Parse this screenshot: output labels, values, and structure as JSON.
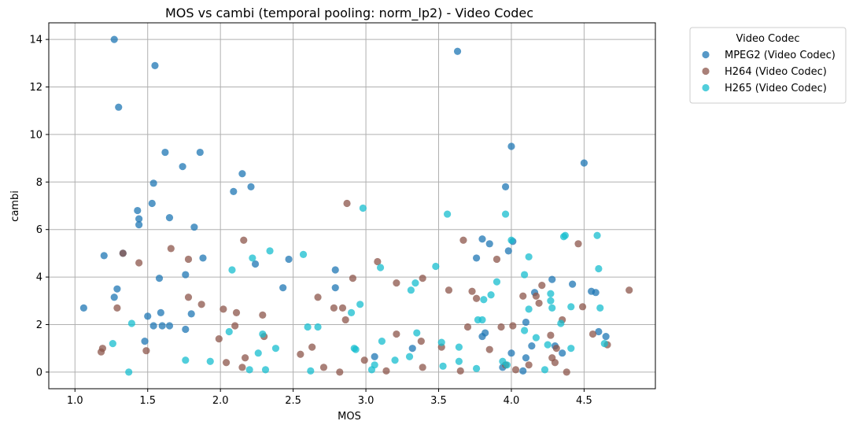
{
  "chart_data": {
    "type": "scatter",
    "title": "MOS vs cambi (temporal pooling: norm_lp2) - Video Codec",
    "xlabel": "MOS",
    "ylabel": "cambi",
    "xlim": [
      0.82,
      4.99
    ],
    "ylim": [
      -0.7,
      14.7
    ],
    "xticks": [
      1.0,
      1.5,
      2.0,
      2.5,
      3.0,
      3.5,
      4.0,
      4.5
    ],
    "xtick_labels": [
      "1.0",
      "1.5",
      "2.0",
      "2.5",
      "3.0",
      "3.5",
      "4.0",
      "4.5"
    ],
    "yticks": [
      0,
      2,
      4,
      6,
      8,
      10,
      12,
      14
    ],
    "ytick_labels": [
      "0",
      "2",
      "4",
      "6",
      "8",
      "10",
      "12",
      "14"
    ],
    "grid": true,
    "legend": {
      "title": "Video Codec",
      "placement": "outside-right-top"
    },
    "series": [
      {
        "name": "MPEG2 (Video Codec)",
        "color": "#1f77b4",
        "points": [
          [
            1.06,
            2.7
          ],
          [
            1.27,
            14.0
          ],
          [
            1.3,
            11.15
          ],
          [
            1.2,
            4.9
          ],
          [
            1.27,
            3.15
          ],
          [
            1.29,
            3.5
          ],
          [
            1.33,
            5.0
          ],
          [
            1.43,
            6.8
          ],
          [
            1.44,
            6.45
          ],
          [
            1.44,
            6.2
          ],
          [
            1.48,
            1.3
          ],
          [
            1.5,
            2.35
          ],
          [
            1.53,
            7.1
          ],
          [
            1.54,
            7.95
          ],
          [
            1.55,
            12.9
          ],
          [
            1.54,
            1.95
          ],
          [
            1.58,
            3.95
          ],
          [
            1.59,
            2.5
          ],
          [
            1.6,
            1.95
          ],
          [
            1.62,
            9.25
          ],
          [
            1.65,
            6.5
          ],
          [
            1.65,
            1.95
          ],
          [
            1.74,
            8.65
          ],
          [
            1.76,
            4.1
          ],
          [
            1.76,
            1.8
          ],
          [
            1.8,
            2.45
          ],
          [
            1.82,
            6.1
          ],
          [
            1.86,
            9.25
          ],
          [
            1.88,
            4.8
          ],
          [
            2.09,
            7.6
          ],
          [
            2.15,
            8.35
          ],
          [
            2.21,
            7.8
          ],
          [
            2.24,
            4.55
          ],
          [
            2.43,
            3.55
          ],
          [
            2.47,
            4.75
          ],
          [
            2.79,
            4.3
          ],
          [
            2.79,
            3.55
          ],
          [
            3.06,
            0.65
          ],
          [
            3.32,
            1.0
          ],
          [
            3.63,
            13.5
          ],
          [
            3.76,
            4.8
          ],
          [
            3.8,
            5.6
          ],
          [
            3.8,
            1.5
          ],
          [
            3.82,
            1.65
          ],
          [
            3.85,
            5.4
          ],
          [
            3.94,
            0.2
          ],
          [
            3.96,
            7.8
          ],
          [
            3.98,
            5.1
          ],
          [
            4.0,
            9.5
          ],
          [
            4.0,
            0.8
          ],
          [
            4.01,
            5.5
          ],
          [
            4.08,
            0.05
          ],
          [
            4.1,
            0.6
          ],
          [
            4.1,
            2.1
          ],
          [
            4.14,
            1.1
          ],
          [
            4.16,
            3.35
          ],
          [
            4.28,
            3.9
          ],
          [
            4.3,
            1.1
          ],
          [
            4.35,
            0.8
          ],
          [
            4.42,
            3.7
          ],
          [
            4.5,
            8.8
          ],
          [
            4.55,
            3.4
          ],
          [
            4.58,
            3.35
          ],
          [
            4.6,
            1.7
          ],
          [
            4.65,
            1.5
          ]
        ]
      },
      {
        "name": "H264 (Video Codec)",
        "color": "#8c564b",
        "points": [
          [
            1.18,
            0.85
          ],
          [
            1.19,
            1.0
          ],
          [
            1.29,
            2.7
          ],
          [
            1.33,
            5.0
          ],
          [
            1.44,
            4.6
          ],
          [
            1.49,
            0.9
          ],
          [
            1.66,
            5.2
          ],
          [
            1.78,
            4.75
          ],
          [
            1.78,
            3.15
          ],
          [
            1.87,
            2.85
          ],
          [
            1.99,
            1.4
          ],
          [
            2.02,
            2.65
          ],
          [
            2.04,
            0.4
          ],
          [
            2.1,
            1.95
          ],
          [
            2.11,
            2.5
          ],
          [
            2.15,
            0.2
          ],
          [
            2.16,
            5.55
          ],
          [
            2.17,
            0.6
          ],
          [
            2.29,
            2.4
          ],
          [
            2.3,
            1.5
          ],
          [
            2.55,
            0.75
          ],
          [
            2.63,
            1.05
          ],
          [
            2.67,
            3.15
          ],
          [
            2.71,
            0.2
          ],
          [
            2.78,
            2.7
          ],
          [
            2.82,
            0.0
          ],
          [
            2.84,
            2.7
          ],
          [
            2.86,
            2.2
          ],
          [
            2.87,
            7.1
          ],
          [
            2.91,
            3.95
          ],
          [
            2.99,
            0.5
          ],
          [
            3.08,
            4.65
          ],
          [
            3.14,
            0.05
          ],
          [
            3.21,
            3.75
          ],
          [
            3.21,
            1.6
          ],
          [
            3.38,
            1.3
          ],
          [
            3.39,
            3.95
          ],
          [
            3.39,
            0.2
          ],
          [
            3.52,
            1.05
          ],
          [
            3.57,
            3.45
          ],
          [
            3.65,
            0.05
          ],
          [
            3.67,
            5.55
          ],
          [
            3.7,
            1.9
          ],
          [
            3.73,
            3.4
          ],
          [
            3.76,
            3.1
          ],
          [
            3.85,
            0.95
          ],
          [
            3.9,
            4.75
          ],
          [
            3.93,
            1.9
          ],
          [
            3.96,
            0.3
          ],
          [
            4.01,
            1.95
          ],
          [
            4.03,
            0.1
          ],
          [
            4.08,
            3.2
          ],
          [
            4.12,
            0.3
          ],
          [
            4.17,
            3.2
          ],
          [
            4.19,
            2.9
          ],
          [
            4.21,
            3.65
          ],
          [
            4.27,
            1.55
          ],
          [
            4.28,
            0.6
          ],
          [
            4.3,
            0.4
          ],
          [
            4.31,
            1.0
          ],
          [
            4.35,
            2.2
          ],
          [
            4.38,
            0.0
          ],
          [
            4.46,
            5.4
          ],
          [
            4.49,
            2.75
          ],
          [
            4.56,
            1.6
          ],
          [
            4.66,
            1.15
          ],
          [
            4.81,
            3.45
          ]
        ]
      },
      {
        "name": "H265 (Video Codec)",
        "color": "#17becf",
        "points": [
          [
            1.26,
            1.2
          ],
          [
            1.37,
            0.0
          ],
          [
            1.39,
            2.05
          ],
          [
            1.76,
            0.5
          ],
          [
            1.93,
            0.45
          ],
          [
            2.06,
            1.7
          ],
          [
            2.08,
            4.3
          ],
          [
            2.2,
            0.1
          ],
          [
            2.22,
            4.8
          ],
          [
            2.26,
            0.8
          ],
          [
            2.29,
            1.6
          ],
          [
            2.31,
            0.1
          ],
          [
            2.34,
            5.1
          ],
          [
            2.38,
            1.0
          ],
          [
            2.57,
            4.95
          ],
          [
            2.6,
            1.9
          ],
          [
            2.62,
            0.05
          ],
          [
            2.67,
            1.9
          ],
          [
            2.9,
            2.5
          ],
          [
            2.92,
            1.0
          ],
          [
            2.93,
            0.95
          ],
          [
            2.96,
            2.85
          ],
          [
            2.98,
            6.9
          ],
          [
            3.04,
            0.1
          ],
          [
            3.06,
            0.3
          ],
          [
            3.1,
            4.4
          ],
          [
            3.11,
            1.3
          ],
          [
            3.2,
            0.5
          ],
          [
            3.3,
            0.65
          ],
          [
            3.31,
            3.45
          ],
          [
            3.34,
            3.75
          ],
          [
            3.35,
            1.65
          ],
          [
            3.48,
            4.45
          ],
          [
            3.52,
            1.25
          ],
          [
            3.53,
            0.25
          ],
          [
            3.56,
            6.65
          ],
          [
            3.64,
            1.05
          ],
          [
            3.64,
            0.45
          ],
          [
            3.76,
            0.15
          ],
          [
            3.77,
            2.2
          ],
          [
            3.8,
            2.2
          ],
          [
            3.81,
            3.05
          ],
          [
            3.86,
            3.25
          ],
          [
            3.9,
            3.8
          ],
          [
            3.94,
            0.45
          ],
          [
            3.96,
            6.65
          ],
          [
            3.97,
            0.3
          ],
          [
            4.0,
            5.55
          ],
          [
            4.09,
            1.75
          ],
          [
            4.09,
            4.1
          ],
          [
            4.12,
            4.85
          ],
          [
            4.12,
            2.65
          ],
          [
            4.17,
            1.45
          ],
          [
            4.23,
            0.1
          ],
          [
            4.25,
            1.15
          ],
          [
            4.27,
            3.3
          ],
          [
            4.27,
            3.0
          ],
          [
            4.28,
            2.7
          ],
          [
            4.34,
            2.05
          ],
          [
            4.36,
            5.7
          ],
          [
            4.37,
            5.75
          ],
          [
            4.41,
            2.75
          ],
          [
            4.41,
            1.0
          ],
          [
            4.59,
            5.75
          ],
          [
            4.6,
            4.35
          ],
          [
            4.61,
            2.7
          ],
          [
            4.64,
            1.2
          ]
        ]
      }
    ]
  }
}
